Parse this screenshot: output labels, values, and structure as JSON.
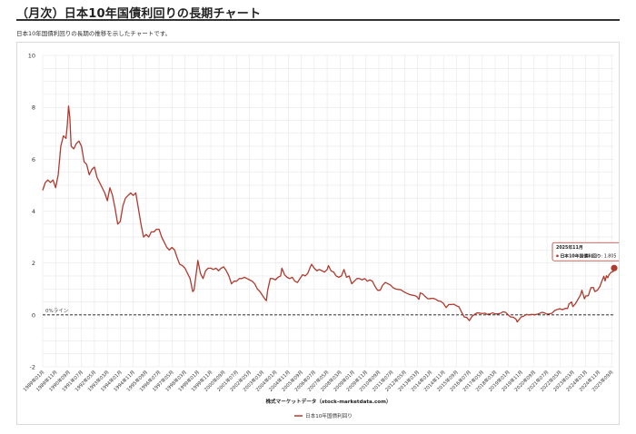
{
  "page": {
    "title": "（月次）日本10年国債利回りの長期チャート",
    "description": "日本10年国債利回りの長期の推移を示したチャートです。"
  },
  "colors": {
    "series": "#b03a2e",
    "grid": "#e6e6e6",
    "zero_line": "#111111"
  },
  "chart_data": {
    "type": "line",
    "title": "",
    "xlabel": "株式マーケットデータ（stock-marketdata.com）",
    "ylabel": "",
    "ylim": [
      -2,
      10
    ],
    "y_ticks": [
      -2,
      0,
      2,
      4,
      6,
      8,
      10
    ],
    "grid": true,
    "legend_position": "bottom",
    "reference_line": {
      "value": 0,
      "label": "0%ライン"
    },
    "x_ticks": [
      "1989年01月",
      "1989年11月",
      "1990年09月",
      "1991年07月",
      "1992年05月",
      "1993年03月",
      "1994年01月",
      "1994年11月",
      "1995年09月",
      "1996年07月",
      "1997年05月",
      "1998年03月",
      "1999年01月",
      "1999年11月",
      "2000年09月",
      "2001年07月",
      "2002年05月",
      "2003年03月",
      "2004年01月",
      "2004年11月",
      "2005年09月",
      "2006年07月",
      "2007年05月",
      "2008年03月",
      "2009年01月",
      "2009年11月",
      "2010年09月",
      "2011年07月",
      "2012年05月",
      "2013年03月",
      "2014年01月",
      "2014年11月",
      "2015年09月",
      "2016年07月",
      "2017年05月",
      "2018年03月",
      "2019年01月",
      "2019年11月",
      "2020年09月",
      "2021年07月",
      "2022年05月",
      "2023年03月",
      "2024年01月",
      "2024年11月",
      "2025年09月"
    ],
    "series": [
      {
        "name": "日本10年国債利回り",
        "points": [
          {
            "x": "1989-01",
            "y": 4.8
          },
          {
            "x": "1989-03",
            "y": 5.1
          },
          {
            "x": "1989-05",
            "y": 5.2
          },
          {
            "x": "1989-07",
            "y": 5.1
          },
          {
            "x": "1989-09",
            "y": 5.2
          },
          {
            "x": "1989-11",
            "y": 4.9
          },
          {
            "x": "1990-01",
            "y": 5.4
          },
          {
            "x": "1990-03",
            "y": 6.5
          },
          {
            "x": "1990-05",
            "y": 6.9
          },
          {
            "x": "1990-07",
            "y": 6.8
          },
          {
            "x": "1990-08",
            "y": 7.3
          },
          {
            "x": "1990-09",
            "y": 8.05
          },
          {
            "x": "1990-10",
            "y": 7.6
          },
          {
            "x": "1990-11",
            "y": 6.5
          },
          {
            "x": "1991-01",
            "y": 6.4
          },
          {
            "x": "1991-03",
            "y": 6.6
          },
          {
            "x": "1991-05",
            "y": 6.7
          },
          {
            "x": "1991-07",
            "y": 6.5
          },
          {
            "x": "1991-09",
            "y": 5.9
          },
          {
            "x": "1991-11",
            "y": 5.8
          },
          {
            "x": "1992-01",
            "y": 5.4
          },
          {
            "x": "1992-03",
            "y": 5.6
          },
          {
            "x": "1992-05",
            "y": 5.7
          },
          {
            "x": "1992-07",
            "y": 5.3
          },
          {
            "x": "1992-09",
            "y": 5.1
          },
          {
            "x": "1992-11",
            "y": 4.9
          },
          {
            "x": "1993-01",
            "y": 4.7
          },
          {
            "x": "1993-03",
            "y": 4.4
          },
          {
            "x": "1993-05",
            "y": 4.9
          },
          {
            "x": "1993-07",
            "y": 4.6
          },
          {
            "x": "1993-09",
            "y": 4.1
          },
          {
            "x": "1993-11",
            "y": 3.5
          },
          {
            "x": "1994-01",
            "y": 3.6
          },
          {
            "x": "1994-03",
            "y": 4.2
          },
          {
            "x": "1994-05",
            "y": 4.5
          },
          {
            "x": "1994-07",
            "y": 4.6
          },
          {
            "x": "1994-09",
            "y": 4.7
          },
          {
            "x": "1994-11",
            "y": 4.6
          },
          {
            "x": "1995-01",
            "y": 4.7
          },
          {
            "x": "1995-03",
            "y": 4.1
          },
          {
            "x": "1995-05",
            "y": 3.5
          },
          {
            "x": "1995-07",
            "y": 3.0
          },
          {
            "x": "1995-09",
            "y": 3.1
          },
          {
            "x": "1995-11",
            "y": 3.0
          },
          {
            "x": "1996-01",
            "y": 3.2
          },
          {
            "x": "1996-03",
            "y": 3.2
          },
          {
            "x": "1996-05",
            "y": 3.3
          },
          {
            "x": "1996-07",
            "y": 3.3
          },
          {
            "x": "1996-09",
            "y": 3.0
          },
          {
            "x": "1996-11",
            "y": 2.8
          },
          {
            "x": "1997-01",
            "y": 2.6
          },
          {
            "x": "1997-03",
            "y": 2.5
          },
          {
            "x": "1997-05",
            "y": 2.6
          },
          {
            "x": "1997-07",
            "y": 2.5
          },
          {
            "x": "1997-09",
            "y": 2.2
          },
          {
            "x": "1997-11",
            "y": 1.95
          },
          {
            "x": "1998-01",
            "y": 1.9
          },
          {
            "x": "1998-03",
            "y": 1.8
          },
          {
            "x": "1998-05",
            "y": 1.6
          },
          {
            "x": "1998-07",
            "y": 1.4
          },
          {
            "x": "1998-09",
            "y": 0.9
          },
          {
            "x": "1998-10",
            "y": 0.95
          },
          {
            "x": "1998-12",
            "y": 1.7
          },
          {
            "x": "1999-01",
            "y": 2.1
          },
          {
            "x": "1999-03",
            "y": 1.6
          },
          {
            "x": "1999-05",
            "y": 1.4
          },
          {
            "x": "1999-07",
            "y": 1.7
          },
          {
            "x": "1999-09",
            "y": 1.8
          },
          {
            "x": "1999-11",
            "y": 1.8
          },
          {
            "x": "2000-01",
            "y": 1.75
          },
          {
            "x": "2000-03",
            "y": 1.8
          },
          {
            "x": "2000-05",
            "y": 1.7
          },
          {
            "x": "2000-07",
            "y": 1.8
          },
          {
            "x": "2000-09",
            "y": 1.85
          },
          {
            "x": "2000-11",
            "y": 1.7
          },
          {
            "x": "2001-01",
            "y": 1.5
          },
          {
            "x": "2001-03",
            "y": 1.2
          },
          {
            "x": "2001-05",
            "y": 1.3
          },
          {
            "x": "2001-07",
            "y": 1.3
          },
          {
            "x": "2001-09",
            "y": 1.4
          },
          {
            "x": "2001-11",
            "y": 1.4
          },
          {
            "x": "2002-01",
            "y": 1.45
          },
          {
            "x": "2002-03",
            "y": 1.4
          },
          {
            "x": "2002-05",
            "y": 1.35
          },
          {
            "x": "2002-07",
            "y": 1.3
          },
          {
            "x": "2002-09",
            "y": 1.2
          },
          {
            "x": "2002-11",
            "y": 1.0
          },
          {
            "x": "2003-01",
            "y": 0.9
          },
          {
            "x": "2003-03",
            "y": 0.75
          },
          {
            "x": "2003-05",
            "y": 0.6
          },
          {
            "x": "2003-06",
            "y": 0.55
          },
          {
            "x": "2003-07",
            "y": 0.95
          },
          {
            "x": "2003-09",
            "y": 1.4
          },
          {
            "x": "2003-11",
            "y": 1.4
          },
          {
            "x": "2004-01",
            "y": 1.35
          },
          {
            "x": "2004-03",
            "y": 1.45
          },
          {
            "x": "2004-05",
            "y": 1.5
          },
          {
            "x": "2004-06",
            "y": 1.8
          },
          {
            "x": "2004-08",
            "y": 1.55
          },
          {
            "x": "2004-10",
            "y": 1.45
          },
          {
            "x": "2004-12",
            "y": 1.4
          },
          {
            "x": "2005-02",
            "y": 1.45
          },
          {
            "x": "2005-04",
            "y": 1.3
          },
          {
            "x": "2005-06",
            "y": 1.25
          },
          {
            "x": "2005-08",
            "y": 1.4
          },
          {
            "x": "2005-10",
            "y": 1.55
          },
          {
            "x": "2005-12",
            "y": 1.5
          },
          {
            "x": "2006-02",
            "y": 1.6
          },
          {
            "x": "2006-04",
            "y": 1.85
          },
          {
            "x": "2006-05",
            "y": 1.95
          },
          {
            "x": "2006-07",
            "y": 1.8
          },
          {
            "x": "2006-09",
            "y": 1.7
          },
          {
            "x": "2006-11",
            "y": 1.75
          },
          {
            "x": "2007-01",
            "y": 1.7
          },
          {
            "x": "2007-03",
            "y": 1.65
          },
          {
            "x": "2007-05",
            "y": 1.75
          },
          {
            "x": "2007-06",
            "y": 1.9
          },
          {
            "x": "2007-08",
            "y": 1.7
          },
          {
            "x": "2007-10",
            "y": 1.65
          },
          {
            "x": "2007-12",
            "y": 1.5
          },
          {
            "x": "2008-02",
            "y": 1.45
          },
          {
            "x": "2008-04",
            "y": 1.5
          },
          {
            "x": "2008-06",
            "y": 1.75
          },
          {
            "x": "2008-08",
            "y": 1.45
          },
          {
            "x": "2008-10",
            "y": 1.5
          },
          {
            "x": "2008-12",
            "y": 1.2
          },
          {
            "x": "2009-02",
            "y": 1.3
          },
          {
            "x": "2009-04",
            "y": 1.4
          },
          {
            "x": "2009-06",
            "y": 1.4
          },
          {
            "x": "2009-08",
            "y": 1.35
          },
          {
            "x": "2009-10",
            "y": 1.4
          },
          {
            "x": "2009-12",
            "y": 1.3
          },
          {
            "x": "2010-02",
            "y": 1.35
          },
          {
            "x": "2010-04",
            "y": 1.3
          },
          {
            "x": "2010-06",
            "y": 1.1
          },
          {
            "x": "2010-08",
            "y": 0.95
          },
          {
            "x": "2010-10",
            "y": 0.95
          },
          {
            "x": "2010-12",
            "y": 1.15
          },
          {
            "x": "2011-02",
            "y": 1.25
          },
          {
            "x": "2011-04",
            "y": 1.2
          },
          {
            "x": "2011-06",
            "y": 1.15
          },
          {
            "x": "2011-08",
            "y": 1.05
          },
          {
            "x": "2011-10",
            "y": 1.0
          },
          {
            "x": "2011-12",
            "y": 0.98
          },
          {
            "x": "2012-02",
            "y": 0.97
          },
          {
            "x": "2012-04",
            "y": 0.9
          },
          {
            "x": "2012-06",
            "y": 0.85
          },
          {
            "x": "2012-08",
            "y": 0.8
          },
          {
            "x": "2012-10",
            "y": 0.77
          },
          {
            "x": "2012-12",
            "y": 0.75
          },
          {
            "x": "2013-02",
            "y": 0.72
          },
          {
            "x": "2013-04",
            "y": 0.6
          },
          {
            "x": "2013-05",
            "y": 0.85
          },
          {
            "x": "2013-07",
            "y": 0.8
          },
          {
            "x": "2013-09",
            "y": 0.7
          },
          {
            "x": "2013-11",
            "y": 0.62
          },
          {
            "x": "2014-01",
            "y": 0.63
          },
          {
            "x": "2014-03",
            "y": 0.64
          },
          {
            "x": "2014-05",
            "y": 0.6
          },
          {
            "x": "2014-07",
            "y": 0.54
          },
          {
            "x": "2014-09",
            "y": 0.52
          },
          {
            "x": "2014-11",
            "y": 0.44
          },
          {
            "x": "2015-01",
            "y": 0.28
          },
          {
            "x": "2015-03",
            "y": 0.4
          },
          {
            "x": "2015-05",
            "y": 0.4
          },
          {
            "x": "2015-07",
            "y": 0.41
          },
          {
            "x": "2015-09",
            "y": 0.35
          },
          {
            "x": "2015-11",
            "y": 0.31
          },
          {
            "x": "2016-01",
            "y": 0.1
          },
          {
            "x": "2016-03",
            "y": -0.08
          },
          {
            "x": "2016-05",
            "y": -0.1
          },
          {
            "x": "2016-07",
            "y": -0.22
          },
          {
            "x": "2016-09",
            "y": -0.06
          },
          {
            "x": "2016-11",
            "y": 0.02
          },
          {
            "x": "2017-01",
            "y": 0.08
          },
          {
            "x": "2017-03",
            "y": 0.07
          },
          {
            "x": "2017-05",
            "y": 0.05
          },
          {
            "x": "2017-07",
            "y": 0.07
          },
          {
            "x": "2017-09",
            "y": 0.02
          },
          {
            "x": "2017-11",
            "y": 0.04
          },
          {
            "x": "2018-01",
            "y": 0.08
          },
          {
            "x": "2018-03",
            "y": 0.04
          },
          {
            "x": "2018-05",
            "y": 0.04
          },
          {
            "x": "2018-07",
            "y": 0.06
          },
          {
            "x": "2018-09",
            "y": 0.12
          },
          {
            "x": "2018-11",
            "y": 0.1
          },
          {
            "x": "2019-01",
            "y": 0.0
          },
          {
            "x": "2019-03",
            "y": -0.08
          },
          {
            "x": "2019-05",
            "y": -0.09
          },
          {
            "x": "2019-07",
            "y": -0.16
          },
          {
            "x": "2019-08",
            "y": -0.27
          },
          {
            "x": "2019-09",
            "y": -0.21
          },
          {
            "x": "2019-11",
            "y": -0.08
          },
          {
            "x": "2020-01",
            "y": -0.05
          },
          {
            "x": "2020-03",
            "y": 0.02
          },
          {
            "x": "2020-05",
            "y": 0.0
          },
          {
            "x": "2020-07",
            "y": 0.02
          },
          {
            "x": "2020-09",
            "y": 0.01
          },
          {
            "x": "2020-11",
            "y": 0.02
          },
          {
            "x": "2021-01",
            "y": 0.05
          },
          {
            "x": "2021-03",
            "y": 0.1
          },
          {
            "x": "2021-05",
            "y": 0.08
          },
          {
            "x": "2021-07",
            "y": 0.03
          },
          {
            "x": "2021-09",
            "y": 0.04
          },
          {
            "x": "2021-11",
            "y": 0.07
          },
          {
            "x": "2022-01",
            "y": 0.17
          },
          {
            "x": "2022-03",
            "y": 0.21
          },
          {
            "x": "2022-05",
            "y": 0.24
          },
          {
            "x": "2022-07",
            "y": 0.2
          },
          {
            "x": "2022-09",
            "y": 0.25
          },
          {
            "x": "2022-11",
            "y": 0.25
          },
          {
            "x": "2022-12",
            "y": 0.42
          },
          {
            "x": "2023-02",
            "y": 0.5
          },
          {
            "x": "2023-03",
            "y": 0.32
          },
          {
            "x": "2023-05",
            "y": 0.43
          },
          {
            "x": "2023-07",
            "y": 0.6
          },
          {
            "x": "2023-09",
            "y": 0.77
          },
          {
            "x": "2023-10",
            "y": 0.95
          },
          {
            "x": "2023-12",
            "y": 0.62
          },
          {
            "x": "2024-01",
            "y": 0.73
          },
          {
            "x": "2024-03",
            "y": 0.74
          },
          {
            "x": "2024-05",
            "y": 1.05
          },
          {
            "x": "2024-07",
            "y": 1.05
          },
          {
            "x": "2024-08",
            "y": 0.9
          },
          {
            "x": "2024-10",
            "y": 0.95
          },
          {
            "x": "2024-12",
            "y": 1.1
          },
          {
            "x": "2025-01",
            "y": 1.24
          },
          {
            "x": "2025-03",
            "y": 1.49
          },
          {
            "x": "2025-04",
            "y": 1.31
          },
          {
            "x": "2025-05",
            "y": 1.51
          },
          {
            "x": "2025-06",
            "y": 1.43
          },
          {
            "x": "2025-07",
            "y": 1.55
          },
          {
            "x": "2025-08",
            "y": 1.6
          },
          {
            "x": "2025-09",
            "y": 1.66
          },
          {
            "x": "2025-10",
            "y": 1.66
          },
          {
            "x": "2025-11",
            "y": 1.805
          }
        ]
      }
    ],
    "tooltip": {
      "date": "2025年11月",
      "series_name": "日本10年国債利回り",
      "value_text": "1.805"
    }
  }
}
